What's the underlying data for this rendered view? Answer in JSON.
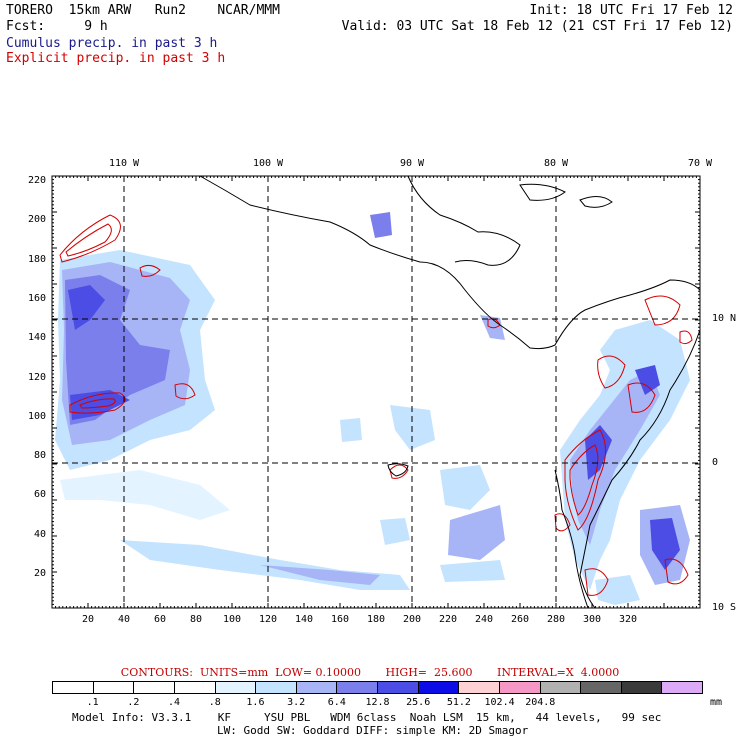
{
  "header": {
    "model": "TORERO  15km ARW   Run2    NCAR/MMM",
    "forecast": "Fcst:     9 h",
    "init": "Init: 18 UTC Fri 17 Feb 12",
    "valid": "Valid: 03 UTC Sat 18 Feb 12 (21 CST Fri 17 Feb 12)"
  },
  "legend": {
    "cumulus": "Cumulus precip. in past 3 h",
    "explicit": "Explicit precip. in past 3 h"
  },
  "map": {
    "top_longitude_labels": [
      "110 W",
      "100 W",
      "90 W",
      "80 W",
      "70 W"
    ],
    "right_latitude_labels": [
      "10 N",
      "0",
      "10 S"
    ],
    "x_grid_labels": [
      "20",
      "40",
      "60",
      "80",
      "100",
      "120",
      "140",
      "160",
      "180",
      "200",
      "220",
      "240",
      "260",
      "280",
      "300",
      "320"
    ],
    "y_grid_labels": [
      "220",
      "200",
      "180",
      "160",
      "140",
      "120",
      "100",
      "80",
      "60",
      "40",
      "20"
    ]
  },
  "contours": "CONTOURS:  UNITS=mm  LOW= 0.10000       HIGH=  25.600       INTERVAL=X  4.0000",
  "colorbar": {
    "colors": [
      "#ffffff",
      "#ffffff",
      "#ffffff",
      "#ffffff",
      "#e3f3ff",
      "#c4e3ff",
      "#a7b5f6",
      "#7b7fec",
      "#4b4de4",
      "#0c0ce6",
      "#ffd1d4",
      "#f598c6",
      "#b1b1b1",
      "#666666",
      "#3a3a3a",
      "#dcaaf6"
    ],
    "labels": [
      ".1",
      ".2",
      ".4",
      ".8",
      "1.6",
      "3.2",
      "6.4",
      "12.8",
      "25.6",
      "51.2",
      "102.4",
      "204.8"
    ],
    "unit": "mm"
  },
  "footer": {
    "line1": "Model Info: V3.3.1    KF     YSU PBL   WDM 6class  Noah LSM  15 km,   44 levels,   99 sec",
    "line2": "LW: Godd SW: Goddard DIFF: simple KM: 2D Smagor"
  }
}
